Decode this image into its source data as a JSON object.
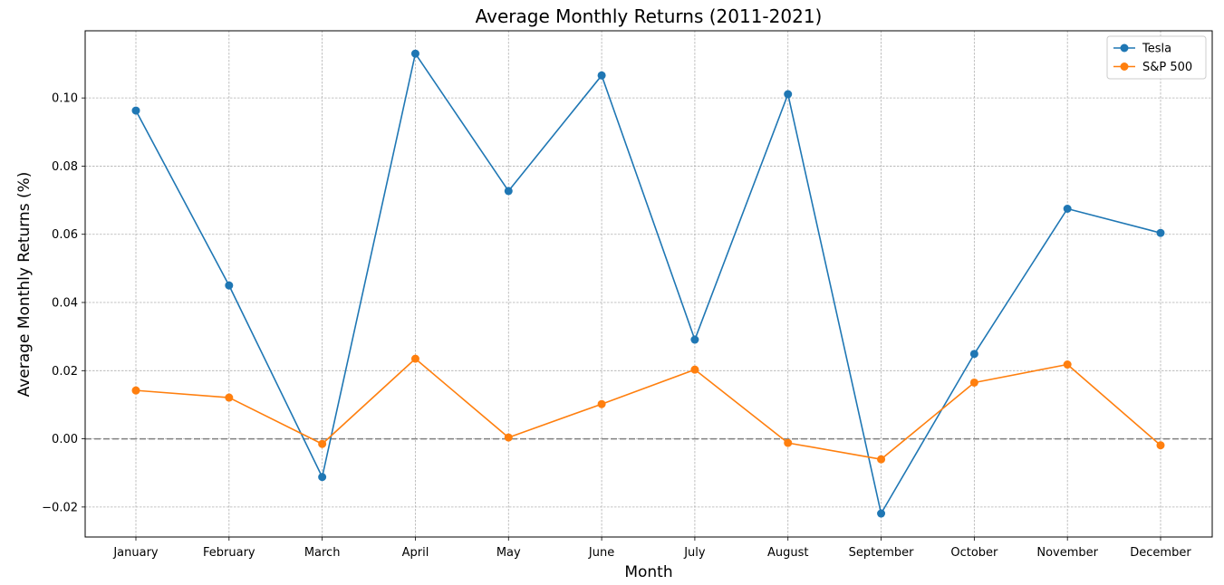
{
  "chart_data": {
    "type": "line",
    "title": "Average Monthly Returns (2011-2021)",
    "xlabel": "Month",
    "ylabel": "Average Monthly Returns (%)",
    "categories": [
      "January",
      "February",
      "March",
      "April",
      "May",
      "June",
      "July",
      "August",
      "September",
      "October",
      "November",
      "December"
    ],
    "series": [
      {
        "name": "Tesla",
        "color": "#1f77b4",
        "values": [
          0.0963,
          0.045,
          -0.0112,
          0.113,
          0.0727,
          0.1066,
          0.0291,
          0.1011,
          -0.0219,
          0.0249,
          0.0675,
          0.0604
        ]
      },
      {
        "name": "S&P 500",
        "color": "#ff7f0e",
        "values": [
          0.0142,
          0.0121,
          -0.0015,
          0.0235,
          0.0004,
          0.0102,
          0.0203,
          -0.0012,
          -0.006,
          0.0165,
          0.0218,
          -0.0019
        ]
      }
    ],
    "ylim": [
      -0.0288,
      0.1197
    ],
    "yticks": [
      -0.02,
      0.0,
      0.02,
      0.04,
      0.06,
      0.08,
      0.1
    ],
    "ytick_labels": [
      "−0.02",
      "0.00",
      "0.02",
      "0.04",
      "0.06",
      "0.08",
      "0.10"
    ],
    "reference_line": {
      "y": 0.0,
      "color": "#808080",
      "style": "dashed"
    },
    "grid": true,
    "legend_position": "top-right"
  }
}
